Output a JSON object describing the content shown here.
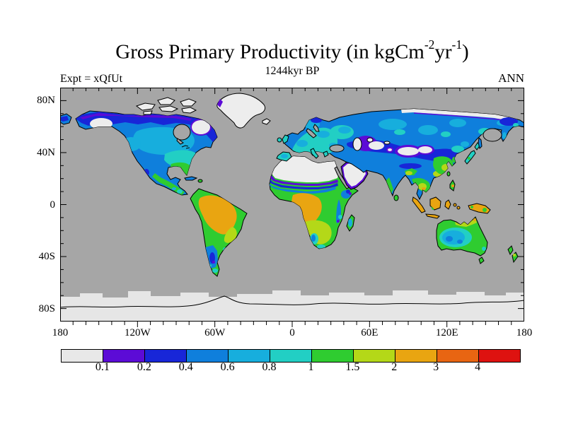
{
  "header": {
    "title_prefix": "Gross Primary Productivity (in kgCm",
    "title_sup1": "-2",
    "title_mid": "yr",
    "title_sup2": "-1",
    "title_suffix": ")",
    "subtitle": "1244kyr BP",
    "experiment_label": "Expt = xQfUt",
    "season_label": "ANN"
  },
  "axes": {
    "x_tick_labels": [
      "180",
      "120W",
      "60W",
      "0",
      "60E",
      "120E",
      "180"
    ],
    "y_tick_labels": [
      "80N",
      "40N",
      "0",
      "40S",
      "80S"
    ],
    "minor_tick_interval_deg": 10,
    "major_tick_interval_x_deg": 60,
    "major_tick_interval_y_deg": 40
  },
  "colorbar": {
    "labels": [
      "0.1",
      "0.2",
      "0.4",
      "0.6",
      "0.8",
      "1",
      "1.5",
      "2",
      "3",
      "4"
    ],
    "colors": [
      "#e8e8e8",
      "#5c0bd6",
      "#1826d8",
      "#0f7fdc",
      "#17aedd",
      "#22cfc4",
      "#2fcc30",
      "#b4d818",
      "#e9a511",
      "#e86512",
      "#de1210"
    ]
  },
  "map_colors": {
    "ocean": "#a6a6a6",
    "no_data_land": "#ededed",
    "antarctica_ice": "#e6e6e6",
    "coastline": "#000000"
  },
  "chart_data": {
    "type": "heatmap",
    "subtype": "filled-contour world map, equirectangular projection",
    "title": "Gross Primary Productivity (in kgCm-2yr-1)",
    "subtitle": "1244kyr BP",
    "experiment": "Expt = xQfUt",
    "season": "ANN",
    "units": "kgC m-2 yr-1",
    "lon_range": [
      -180,
      180
    ],
    "lat_range": [
      -90,
      90
    ],
    "contour_levels": [
      0.1,
      0.2,
      0.4,
      0.6,
      0.8,
      1,
      1.5,
      2,
      3,
      4
    ],
    "legend_position": "bottom horizontal colorbar",
    "grid": false,
    "regions": [
      {
        "region": "Amazon basin / central Brazil",
        "gpp": "2-3"
      },
      {
        "region": "Congo basin / West Africa",
        "gpp": "2-3"
      },
      {
        "region": "Maritime Southeast Asia (Sumatra, Borneo, New Guinea)",
        "gpp": "2-3"
      },
      {
        "region": "Sahara, Arabian Peninsula",
        "gpp": "<0.1"
      },
      {
        "region": "Greenland, Canadian Arctic islands, Antarctica",
        "gpp": "<0.1"
      },
      {
        "region": "Central Asian deserts (Karakum, Taklamakan, Gobi)",
        "gpp": "<0.1-0.2"
      },
      {
        "region": "Alaska-Yukon interior, NE Canada (Ungava)",
        "gpp": "<0.1"
      },
      {
        "region": "Boreal Canada",
        "gpp": "0.4-0.8"
      },
      {
        "region": "Eastern US",
        "gpp": "0.8-1.5"
      },
      {
        "region": "Mexico / Central America",
        "gpp": "0.4-1.5"
      },
      {
        "region": "Europe",
        "gpp": "0.6-1"
      },
      {
        "region": "Siberia",
        "gpp": "0.2-0.8"
      },
      {
        "region": "India",
        "gpp": "0.4-1"
      },
      {
        "region": "Southeast China",
        "gpp": "1-2"
      },
      {
        "region": "Sahel transition bands",
        "gpp": "0.1-0.6"
      },
      {
        "region": "Southern Africa",
        "gpp": "1-2"
      },
      {
        "region": "Australia interior",
        "gpp": "0.6-1"
      },
      {
        "region": "Australia coastal rim, New Zealand",
        "gpp": "1-1.5"
      },
      {
        "region": "Patagonia",
        "gpp": "0.1-0.6"
      },
      {
        "region": "Ocean",
        "gpp": "masked (gray)"
      }
    ]
  }
}
